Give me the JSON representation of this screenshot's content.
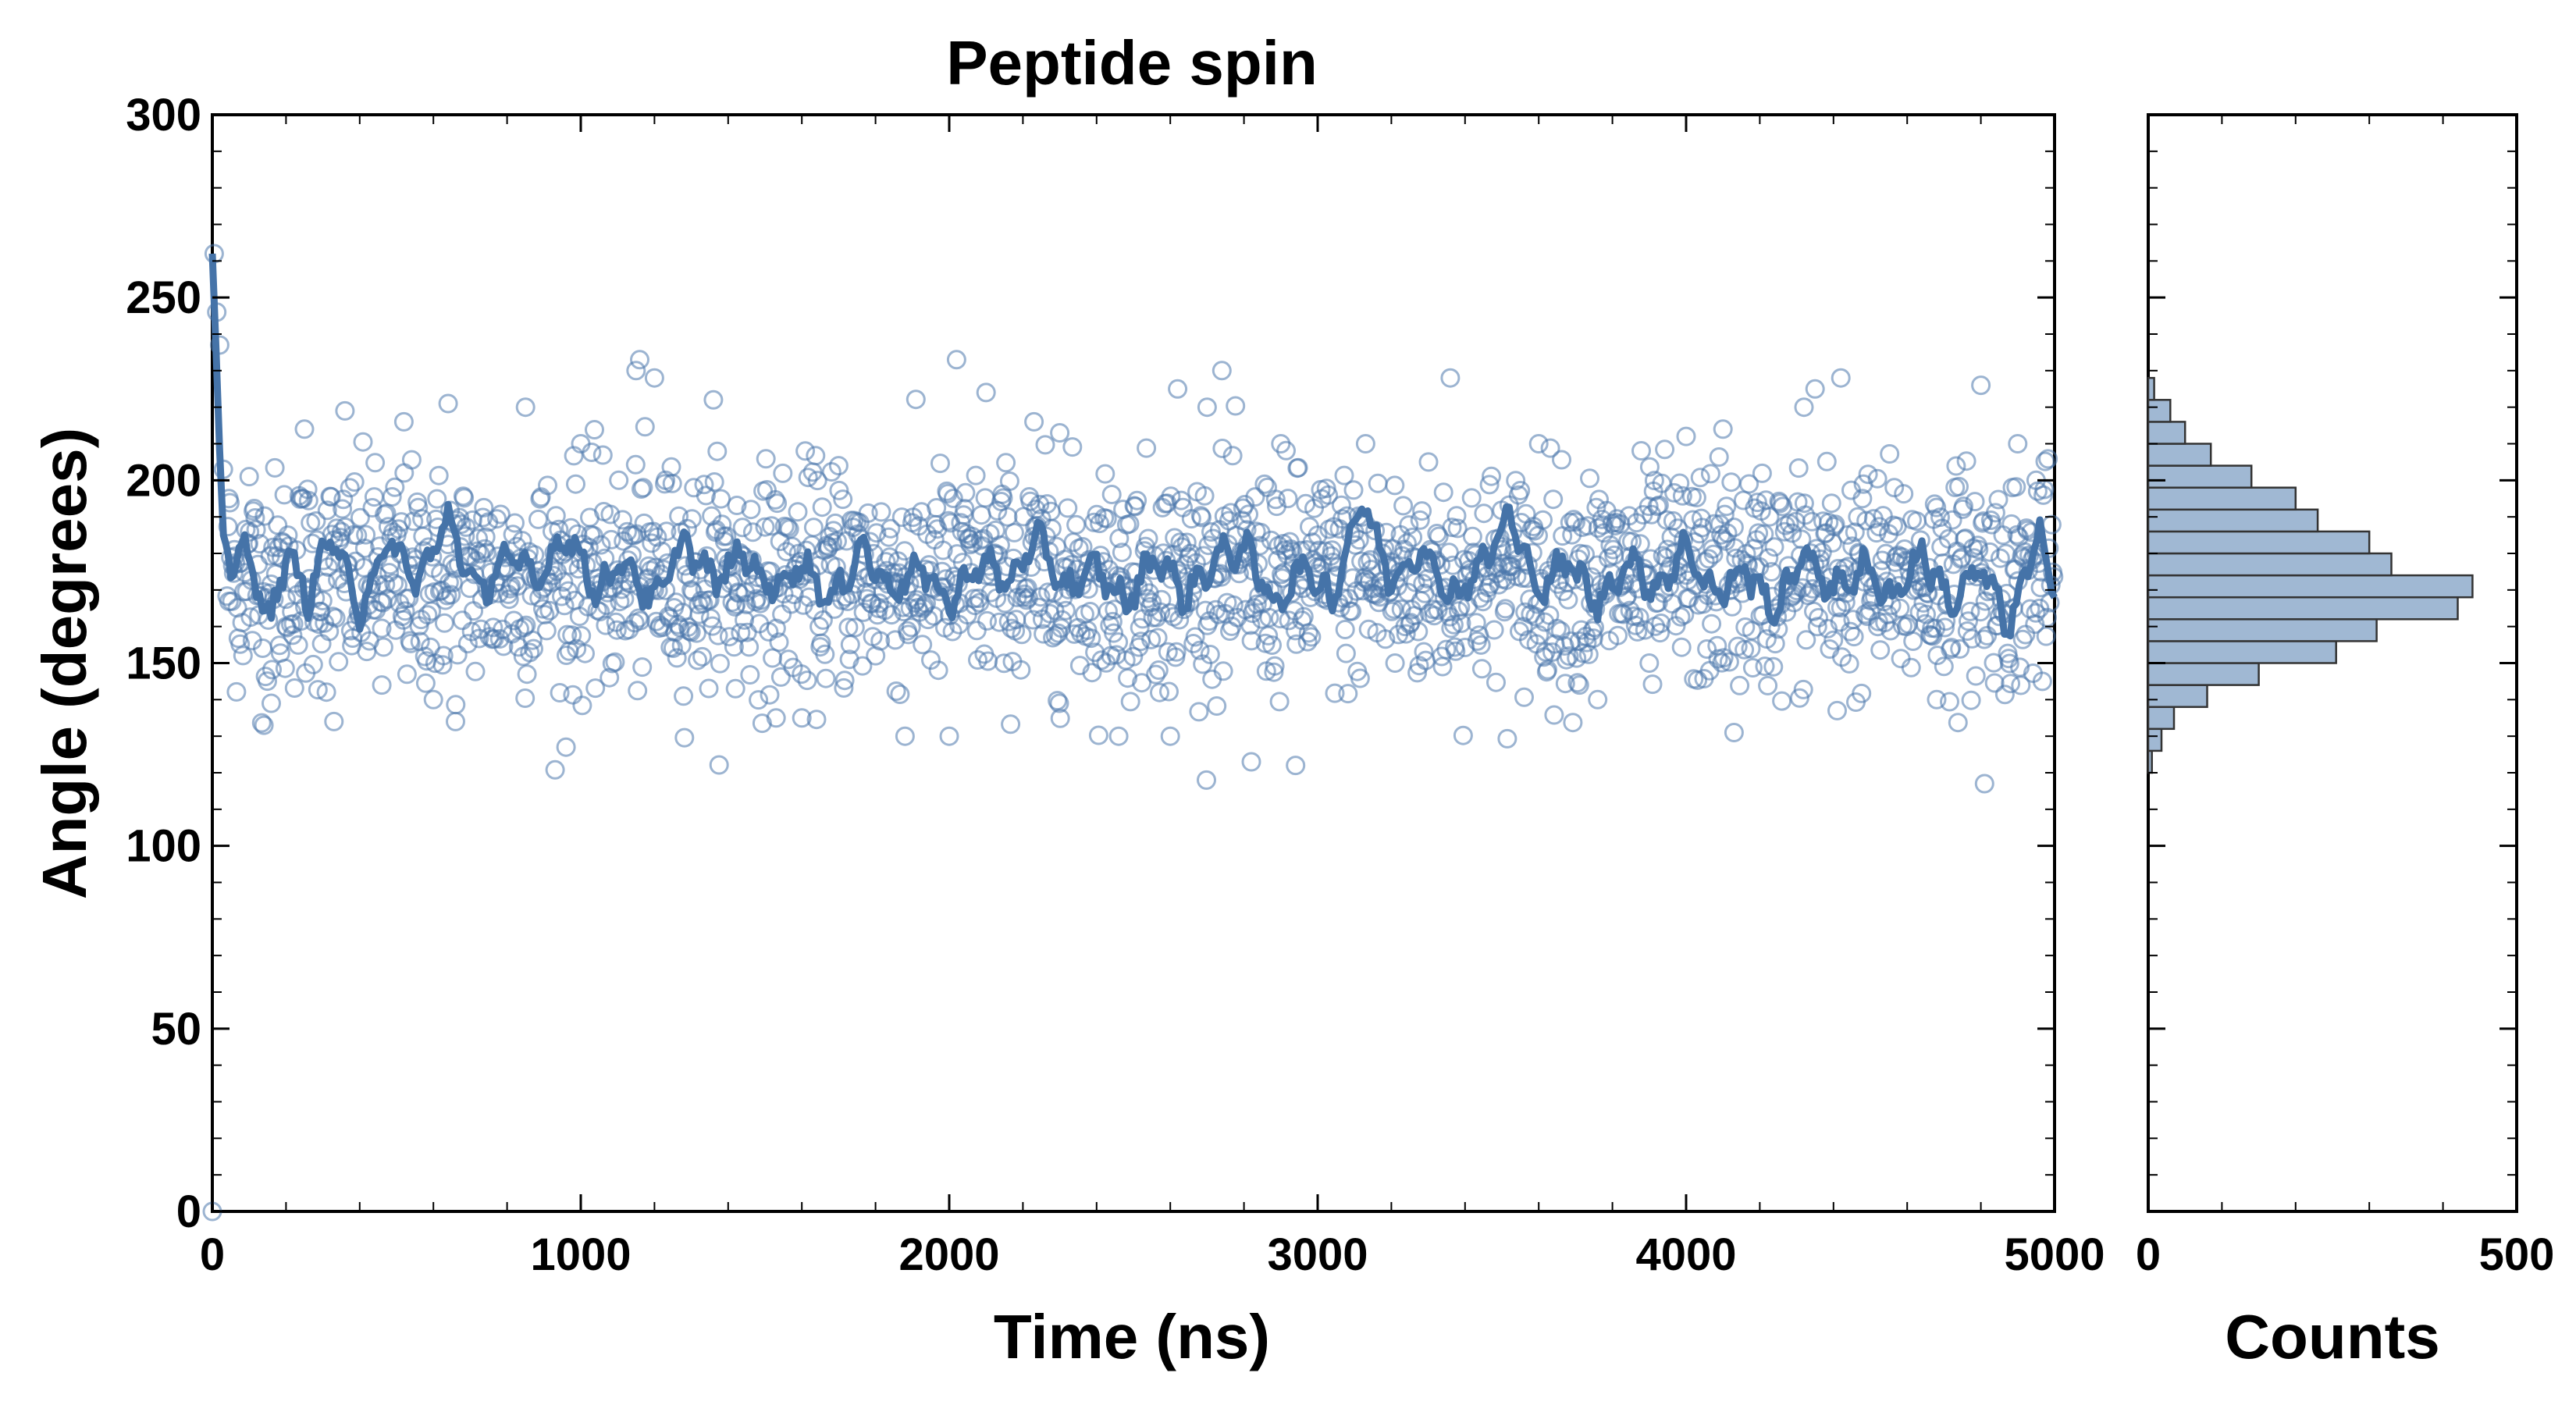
{
  "chart_data": [
    {
      "type": "scatter",
      "title": "Peptide spin",
      "xlabel": "Time (ns)",
      "ylabel": "Angle (degrees)",
      "xlim": [
        0,
        5000
      ],
      "ylim": [
        0,
        300
      ],
      "xticks": [
        0,
        1000,
        2000,
        3000,
        4000,
        5000
      ],
      "yticks": [
        0,
        50,
        100,
        150,
        200,
        250,
        300
      ],
      "grid": false,
      "legend": "none",
      "colors": {
        "points": "#4a77ab",
        "line": "#4573a8"
      },
      "series": [
        {
          "kind": "scatter-open-circles",
          "description_of_values": "≈2000 points, mean 173°, sd ≈17°, range ≈117–233°; initial values near 262° and 0 at t=0",
          "points": [
            [
              0,
              0
            ],
            [
              5,
              262
            ],
            [
              12,
              246
            ],
            [
              20,
              237
            ],
            [
              30,
              203
            ],
            [
              45,
              195
            ],
            [
              60,
              181
            ],
            [
              100,
              201
            ],
            [
              140,
              133
            ],
            [
              160,
              139
            ],
            [
              200,
              160
            ],
            [
              250,
              214
            ],
            [
              330,
              134
            ],
            [
              360,
              219
            ],
            [
              460,
              144
            ],
            [
              520,
              216
            ],
            [
              600,
              140
            ],
            [
              640,
              221
            ],
            [
              660,
              134
            ],
            [
              850,
              220
            ],
            [
              960,
              127
            ],
            [
              1000,
              210
            ],
            [
              1150,
              230
            ],
            [
              1160,
              233
            ],
            [
              1200,
              228
            ],
            [
              1230,
              200
            ],
            [
              1300,
              170
            ],
            [
              1360,
              222
            ],
            [
              1420,
              143
            ],
            [
              1530,
              135
            ],
            [
              1600,
              135
            ],
            [
              1700,
              204
            ],
            [
              1880,
              130
            ],
            [
              2000,
              130
            ],
            [
              2020,
              233
            ],
            [
              2100,
              224
            ],
            [
              2230,
              216
            ],
            [
              2300,
              213
            ],
            [
              2460,
              130
            ],
            [
              2600,
              130
            ],
            [
              2620,
              225
            ],
            [
              2700,
              220
            ],
            [
              2740,
              230
            ],
            [
              2820,
              123
            ],
            [
              2900,
              210
            ],
            [
              2940,
              122
            ],
            [
              3000,
              185
            ],
            [
              3130,
              210
            ],
            [
              3210,
              150
            ],
            [
              3360,
              228
            ],
            [
              3500,
              181
            ],
            [
              3600,
              210
            ],
            [
              3710,
              156
            ],
            [
              3760,
              140
            ],
            [
              3900,
              150
            ],
            [
              4000,
              212
            ],
            [
              4100,
              214
            ],
            [
              4130,
              131
            ],
            [
              4320,
              220
            ],
            [
              4350,
              225
            ],
            [
              4410,
              137
            ],
            [
              4420,
              228
            ],
            [
              4520,
              160
            ],
            [
              4680,
              140
            ],
            [
              4800,
              226
            ],
            [
              4810,
              117
            ],
            [
              4900,
              210
            ],
            [
              4950,
              200
            ]
          ],
          "generated_bulk": {
            "count": 1950,
            "mean": 173,
            "sd": 15
          }
        },
        {
          "kind": "running-average-line",
          "description_of_values": "Noisy smoothed trace around 173°, starting ≈262° at t=0 and decaying to ≈180° by t≈30 ns; mostly between 155° and 195°",
          "x": [
            0,
            10,
            20,
            30,
            50,
            80,
            120,
            160,
            200,
            260,
            320,
            400,
            480,
            560,
            640,
            720,
            800,
            880,
            960,
            1040,
            1120,
            1200,
            1280,
            1360,
            1440,
            1520,
            1600,
            1680,
            1760,
            1840,
            1920,
            2000,
            2080,
            2160,
            2240,
            2320,
            2400,
            2480,
            2560,
            2640,
            2720,
            2800,
            2880,
            2960,
            3040,
            3120,
            3200,
            3280,
            3360,
            3440,
            3520,
            3600,
            3680,
            3760,
            3840,
            3920,
            4000,
            4080,
            4160,
            4240,
            4320,
            4400,
            4480,
            4560,
            4640,
            4720,
            4800,
            4880,
            4960,
            5000
          ],
          "y": [
            262,
            236,
            208,
            185,
            178,
            181,
            172,
            162,
            180,
            168,
            185,
            165,
            183,
            172,
            190,
            168,
            180,
            172,
            186,
            170,
            178,
            166,
            184,
            172,
            180,
            170,
            178,
            166,
            182,
            170,
            176,
            166,
            178,
            172,
            184,
            170,
            176,
            166,
            180,
            168,
            178,
            182,
            166,
            176,
            168,
            195,
            172,
            182,
            168,
            176,
            190,
            170,
            178,
            166,
            178,
            170,
            182,
            168,
            176,
            164,
            180,
            170,
            176,
            168,
            180,
            166,
            176,
            160,
            186,
            168
          ]
        },
        {
          "kind": "histogram-horizontal",
          "xlabel": "Counts",
          "xlim": [
            0,
            500
          ],
          "xticks": [
            0,
            500
          ],
          "colors": {
            "fill": "#a0b8d3",
            "edge": "#333333"
          },
          "bin_width": 6,
          "bins_start": [
            120,
            126,
            132,
            138,
            144,
            150,
            156,
            162,
            168,
            174,
            180,
            186,
            192,
            198,
            204,
            210,
            216,
            222
          ],
          "counts": [
            5,
            18,
            35,
            80,
            150,
            255,
            310,
            420,
            440,
            330,
            300,
            230,
            200,
            140,
            85,
            50,
            30,
            8
          ]
        }
      ]
    }
  ]
}
